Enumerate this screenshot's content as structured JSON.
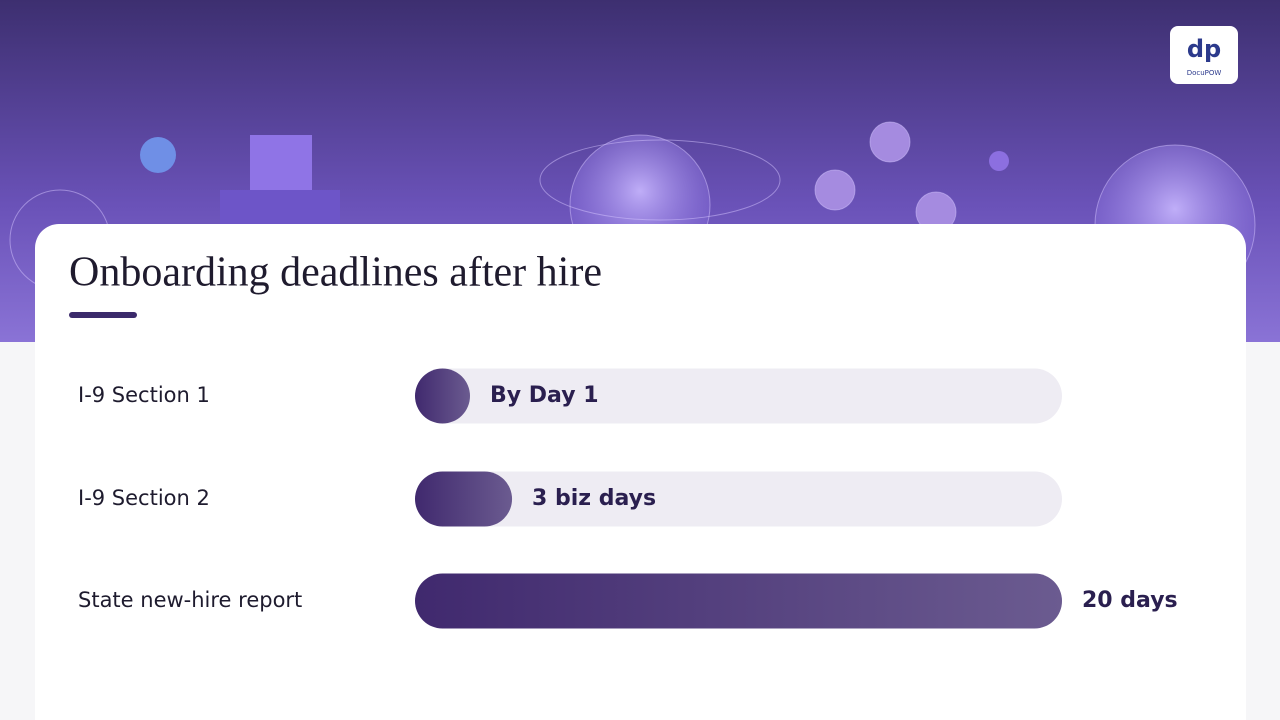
{
  "chart_data": {
    "type": "bar",
    "orientation": "horizontal",
    "title": "Onboarding deadlines after hire",
    "categories": [
      "I-9 Section 1",
      "I-9 Section 2",
      "State new-hire report"
    ],
    "values": [
      1,
      3,
      20
    ],
    "value_labels": [
      "By Day 1",
      "3 biz days",
      "20 days"
    ],
    "color": "#4a3478"
  },
  "brand": "DocuPOW"
}
